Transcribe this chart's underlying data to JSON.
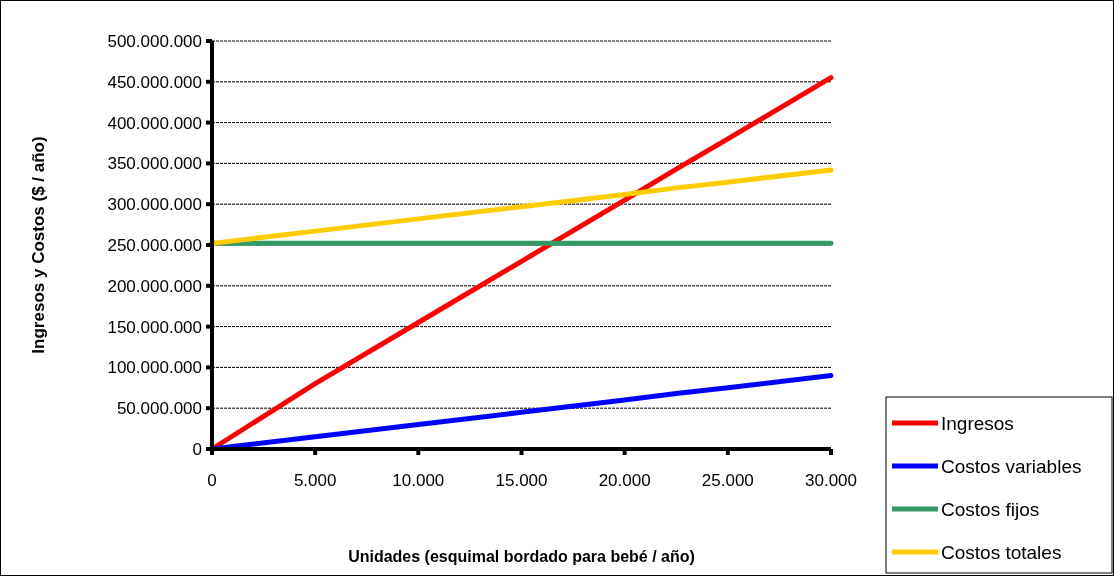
{
  "chart_data": {
    "type": "line",
    "xlabel": "Unidades (esquimal bordado para bebé / año)",
    "ylabel": "Ingresos y Costos ($ / año)",
    "x": [
      0,
      5000,
      10000,
      15000,
      20000,
      22500,
      25000,
      30000
    ],
    "series": [
      {
        "name": "Ingresos",
        "color": "#ff0000",
        "values": [
          0,
          80000000,
          155000000,
          230000000,
          305000000,
          343000000,
          380000000,
          455000000
        ]
      },
      {
        "name": "Costos variables",
        "color": "#0000ff",
        "values": [
          0,
          15000000,
          30000000,
          45000000,
          60000000,
          68000000,
          75000000,
          90000000
        ]
      },
      {
        "name": "Costos fijos",
        "color": "#339966",
        "values": [
          252000000,
          252000000,
          252000000,
          252000000,
          252000000,
          252000000,
          252000000,
          252000000
        ]
      },
      {
        "name": "Costos totales",
        "color": "#ffcc00",
        "values": [
          252000000,
          267000000,
          282000000,
          297000000,
          312000000,
          320000000,
          327000000,
          342000000
        ]
      }
    ],
    "xlim": [
      0,
      30000
    ],
    "xticks": [
      0,
      {
        "value": 5000,
        "label": "5.000"
      },
      {
        "value": 10000,
        "label": "10.000"
      },
      {
        "value": 15000,
        "label": "15.000"
      },
      {
        "value": 20000,
        "label": "20.000"
      },
      {
        "value": 25000,
        "label": "25.000"
      },
      {
        "value": 30000,
        "label": "30.000"
      }
    ],
    "ylim": [
      0,
      500000000
    ],
    "yticks": [
      0,
      {
        "value": 50000000,
        "label": "50.000.000"
      },
      {
        "value": 100000000,
        "label": "100.000.000"
      },
      {
        "value": 150000000,
        "label": "150.000.000"
      },
      {
        "value": 200000000,
        "label": "200.000.000"
      },
      {
        "value": 250000000,
        "label": "250.000.000"
      },
      {
        "value": 300000000,
        "label": "300.000.000"
      },
      {
        "value": 350000000,
        "label": "350.000.000"
      },
      {
        "value": 400000000,
        "label": "400.000.000"
      },
      {
        "value": 450000000,
        "label": "450.000.000"
      },
      {
        "value": 500000000,
        "label": "500.000.000"
      }
    ],
    "grid": "y",
    "legend": "bottom right",
    "marker": "none",
    "line_style": "solid"
  }
}
